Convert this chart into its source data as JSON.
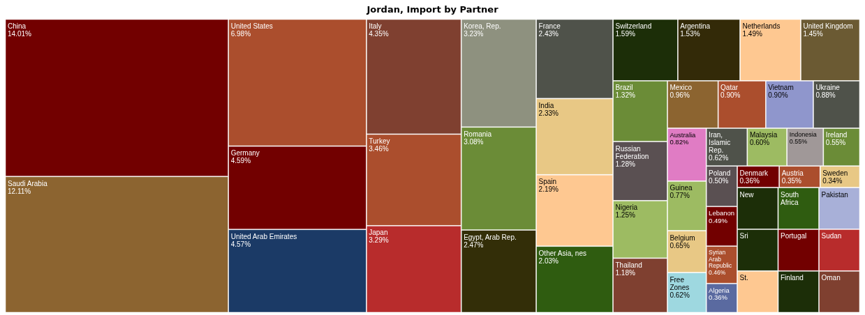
{
  "chart_data": {
    "type": "other",
    "title": "Jordan, Import by Partner",
    "categories": [
      "China",
      "Saudi Arabia",
      "United States",
      "Germany",
      "United Arab Emirates",
      "Italy",
      "Turkey",
      "Japan",
      "Korea, Rep.",
      "Romania",
      "Egypt, Arab Rep.",
      "France",
      "India",
      "Spain",
      "Other Asia, nes",
      "Switzerland",
      "Argentina",
      "Netherlands",
      "United Kingdom",
      "Brazil",
      "Russian Federation",
      "Nigeria",
      "Thailand",
      "Mexico",
      "Qatar",
      "Vietnam",
      "Ukraine",
      "Australia",
      "Guinea",
      "Belgium",
      "Free Zones",
      "Iran, Islamic Rep.",
      "Malaysia",
      "Indonesia",
      "Ireland",
      "Poland",
      "Lebanon",
      "Syrian Arab Republic",
      "Algeria",
      "Denmark",
      "Austria",
      "Sweden",
      "New",
      "South Africa",
      "Pakistan",
      "Sri",
      "St.",
      "Portugal",
      "Sudan",
      "Finland",
      "Oman"
    ],
    "values": [
      14.01,
      12.11,
      6.98,
      4.59,
      4.57,
      4.35,
      3.46,
      3.29,
      3.23,
      3.08,
      2.47,
      2.43,
      2.33,
      2.19,
      2.03,
      1.59,
      1.53,
      1.49,
      1.45,
      1.32,
      1.28,
      1.25,
      1.18,
      0.96,
      0.9,
      0.9,
      0.88,
      0.82,
      0.77,
      0.65,
      0.62,
      0.62,
      0.6,
      0.55,
      0.55,
      0.5,
      0.49,
      0.46,
      0.36,
      0.36,
      0.35,
      0.34,
      null,
      null,
      null,
      null,
      null,
      null,
      null,
      null,
      null
    ],
    "value_labels": [
      "14.01%",
      "12.11%",
      "6.98%",
      "4.59%",
      "4.57%",
      "4.35%",
      "3.46%",
      "3.29%",
      "3.23%",
      "3.08%",
      "2.47%",
      "2.43%",
      "2.33%",
      "2.19%",
      "2.03%",
      "1.59%",
      "1.53%",
      "1.49%",
      "1.45%",
      "1.32%",
      "1.28%",
      "1.25%",
      "1.18%",
      "0.96%",
      "0.90%",
      "0.90%",
      "0.88%",
      "0.82%",
      "0.77%",
      "0.65%",
      "0.62%",
      "0.62%",
      "0.60%",
      "0.55%",
      "0.55%",
      "0.50%",
      "0.49%",
      "0.46%",
      "0.36%",
      "0.36%",
      "0.35%",
      "0.34%",
      null,
      null,
      null,
      null,
      null,
      null,
      null,
      null,
      null
    ],
    "colors": [
      "#720000",
      "#8c6430",
      "#ab4e2d",
      "#720000",
      "#1b3a66",
      "#7f4030",
      "#ab4e2d",
      "#b82c2c",
      "#8e917f",
      "#6b8c37",
      "#332e08",
      "#4f524a",
      "#e8c885",
      "#fec891",
      "#2f5c10",
      "#1c2e08",
      "#332a08",
      "#fec891",
      "#6b5a33",
      "#6b8c37",
      "#5a5052",
      "#9dbb62",
      "#7f4030",
      "#8c6430",
      "#ab4e2d",
      "#8f96cc",
      "#4f524a",
      "#e07cc4",
      "#9dbb62",
      "#e8c885",
      "#9ed8e0",
      "#4f524a",
      "#9dbb62",
      "#a09898",
      "#6b8c37",
      "#5a5052",
      "#720000",
      "#ab4e2d",
      "#5a6aa0",
      "#720000",
      "#ab4e2d",
      "#e8c885",
      "#1c2e08",
      "#2f5c10",
      "#a8b0d8",
      "#1c2e08",
      "#fec891",
      "#720000",
      "#b82c2c",
      "#1c2e08",
      "#7f4030"
    ]
  }
}
